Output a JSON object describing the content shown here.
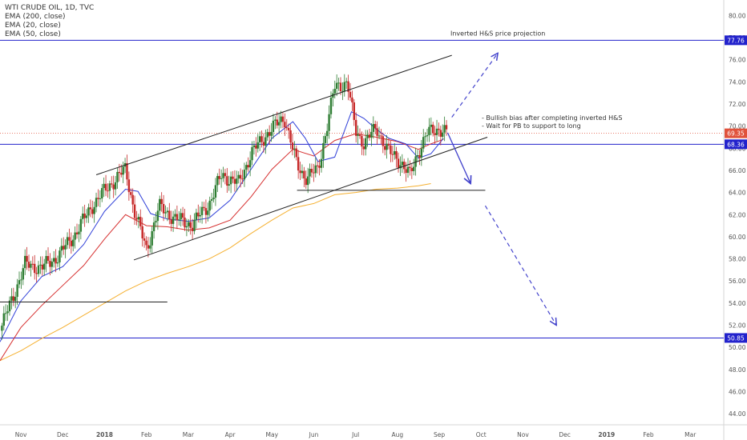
{
  "legend": {
    "symbol": "WTI CRUDE OIL, 1D, TVC",
    "indicators": [
      "EMA (200, close)",
      "EMA (20, close)",
      "EMA (50, close)"
    ]
  },
  "colors": {
    "candle_up": "#2e7d32",
    "candle_down": "#c62828",
    "ema20": "#2f3fd8",
    "ema50": "#d62f2f",
    "ema200": "#f5b030",
    "horizontal_levels": "#2222cc",
    "projection_arrows": "#4444cc",
    "trend_lines": "#222222",
    "price_badge": "#2222cc",
    "last_price_badge": "#e0523c"
  },
  "annotations": {
    "projection_label": "Inverted H&S price projection",
    "bias_note_1": "- Bullish bias after completing inverted H&S",
    "bias_note_2": "- Wait for PB to support to long"
  },
  "chart_data": {
    "type": "candlestick",
    "title": "WTI CRUDE OIL, 1D, TVC",
    "x_tick_labels": [
      "Nov",
      "Dec",
      "2018",
      "Feb",
      "Mar",
      "Apr",
      "May",
      "Jun",
      "Jul",
      "Aug",
      "Sep",
      "Oct",
      "Nov",
      "Dec",
      "2019",
      "Feb",
      "Mar"
    ],
    "x_tick_positions": [
      0.5,
      1.5,
      2.5,
      3.5,
      4.5,
      5.5,
      6.5,
      7.5,
      8.5,
      9.5,
      10.5,
      11.5,
      12.5,
      13.5,
      14.5,
      15.5,
      16.5
    ],
    "xlim": [
      0,
      17.3
    ],
    "y_tick_labels": [
      "44.00",
      "46.00",
      "48.00",
      "50.00",
      "52.00",
      "54.00",
      "56.00",
      "58.00",
      "60.00",
      "62.00",
      "64.00",
      "66.00",
      "68.00",
      "70.00",
      "72.00",
      "74.00",
      "76.00",
      "78.00",
      "80.00"
    ],
    "ylim": [
      43,
      81.4
    ],
    "last_price": 69.35,
    "price_levels": [
      77.76,
      68.36,
      50.85
    ],
    "price_series": {
      "x": [
        0,
        0.3,
        0.6,
        1.0,
        1.4,
        1.8,
        2.2,
        2.6,
        3.0,
        3.2,
        3.5,
        3.8,
        4.2,
        4.6,
        5.0,
        5.3,
        5.7,
        6.0,
        6.4,
        6.8,
        7.1,
        7.3,
        7.6,
        8.0,
        8.3,
        8.5,
        8.7,
        9.0,
        9.3,
        9.6,
        9.8,
        10.0,
        10.2,
        10.5,
        10.7
      ],
      "close": [
        51.5,
        54.5,
        57.5,
        57.2,
        58.3,
        60.3,
        62.8,
        64.6,
        66.1,
        62.5,
        58.8,
        62.7,
        61.6,
        61.1,
        63.0,
        65.6,
        64.8,
        67.5,
        69.4,
        70.8,
        66.4,
        65.4,
        66.0,
        73.5,
        74.0,
        69.5,
        68.5,
        69.8,
        67.6,
        66.7,
        65.5,
        67.7,
        69.3,
        69.8,
        69.35
      ]
    },
    "ema20": {
      "x": [
        0,
        0.5,
        1.0,
        1.5,
        2.0,
        2.5,
        3.0,
        3.3,
        3.6,
        4.0,
        4.5,
        5.0,
        5.5,
        6.0,
        6.5,
        7.0,
        7.3,
        7.6,
        8.0,
        8.4,
        8.7,
        9.0,
        9.3,
        9.7,
        10.0,
        10.3,
        10.6
      ],
      "y": [
        50.5,
        54.2,
        56.4,
        57.3,
        59.3,
        62.3,
        64.3,
        64.1,
        62.1,
        61.6,
        61.4,
        61.7,
        63.3,
        66.1,
        68.9,
        70.4,
        68.9,
        66.8,
        67.2,
        71.3,
        70.7,
        69.7,
        68.9,
        68.4,
        67.1,
        67.5,
        68.9
      ]
    },
    "ema50": {
      "x": [
        0,
        0.5,
        1.0,
        1.5,
        2.0,
        2.5,
        3.0,
        3.5,
        4.0,
        4.5,
        5.0,
        5.5,
        6.0,
        6.5,
        7.0,
        7.5,
        8.0,
        8.5,
        9.0,
        9.5,
        10.0,
        10.3,
        10.6
      ],
      "y": [
        48.8,
        51.8,
        53.8,
        55.6,
        57.4,
        59.8,
        62.0,
        61.0,
        60.9,
        60.6,
        60.8,
        61.5,
        63.6,
        66.1,
        67.9,
        67.3,
        68.7,
        69.3,
        69.0,
        68.6,
        67.9,
        68.4,
        68.8
      ]
    },
    "ema200": {
      "x": [
        0,
        0.5,
        1.0,
        1.5,
        2.0,
        2.5,
        3.0,
        3.5,
        4.0,
        4.5,
        5.0,
        5.5,
        6.0,
        6.5,
        7.0,
        7.5,
        8.0,
        8.5,
        9.0,
        9.5,
        10.0,
        10.3
      ],
      "y": [
        48.8,
        49.7,
        50.8,
        51.8,
        52.9,
        54.0,
        55.1,
        56.0,
        56.7,
        57.3,
        58.0,
        59.0,
        60.3,
        61.5,
        62.6,
        63.0,
        63.8,
        64.0,
        64.3,
        64.4,
        64.6,
        64.8
      ]
    },
    "trend_lines": [
      {
        "x1": 2.3,
        "y1": 65.6,
        "x2": 10.8,
        "y2": 76.4
      },
      {
        "x1": 3.2,
        "y1": 57.9,
        "x2": 11.65,
        "y2": 69.0
      },
      {
        "x1": 0,
        "y1": 54.1,
        "x2": 4.0,
        "y2": 54.1
      },
      {
        "x1": 7.1,
        "y1": 64.2,
        "x2": 11.6,
        "y2": 64.2
      }
    ],
    "projection_arrows": [
      {
        "x1": 10.8,
        "y1": 70.8,
        "x2": 11.9,
        "y2": 76.6
      },
      {
        "x1": 11.6,
        "y1": 62.8,
        "x2": 13.3,
        "y2": 52.0
      }
    ],
    "solid_arrow": {
      "x1": 10.7,
      "y1": 69.4,
      "x2": 11.25,
      "y2": 64.8
    }
  }
}
